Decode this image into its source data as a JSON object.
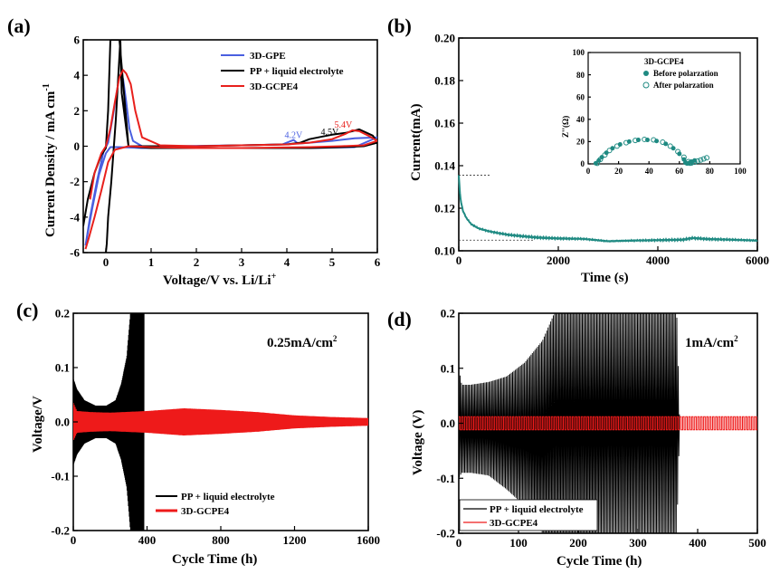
{
  "chart_data": [
    {
      "panel": "(a)",
      "type": "line",
      "xlabel": "Voltage/V vs. Li/Li",
      "xlabel_sup": "+",
      "ylabel": "Current Density / mA cm",
      "ylabel_sup": "-1",
      "xlim": [
        -0.5,
        6
      ],
      "ylim": [
        -6,
        6
      ],
      "xticks": [
        0,
        1,
        2,
        3,
        4,
        5,
        6
      ],
      "yticks": [
        -6,
        -4,
        -2,
        0,
        2,
        4,
        6
      ],
      "legend_position": "top-right",
      "series": [
        {
          "name": "3D-GPE",
          "color": "#4a5fe0",
          "x": [
            -0.45,
            -0.35,
            -0.2,
            -0.05,
            0.05,
            0.15,
            0.25,
            0.3,
            0.38,
            0.45,
            0.52,
            0.6,
            0.8,
            1.5,
            3,
            3.9,
            4.05,
            4.15,
            4.25,
            4.5,
            5,
            5.5,
            6,
            5.5,
            4.5,
            3,
            1.5,
            0.8,
            0.3,
            0.1,
            0,
            -0.15,
            -0.3,
            -0.45
          ],
          "y": [
            -5.6,
            -4.0,
            -2.0,
            -0.3,
            0.2,
            1.6,
            3.2,
            4.0,
            3.8,
            2.5,
            1.0,
            0.3,
            0.0,
            0.0,
            0.05,
            0.1,
            0.25,
            0.35,
            0.15,
            0.2,
            0.3,
            0.45,
            0.5,
            -0.05,
            -0.1,
            -0.1,
            -0.1,
            -0.1,
            -0.05,
            -0.05,
            -0.4,
            -1.6,
            -3.5,
            -5.6
          ]
        },
        {
          "name": "PP + liquid electrolyte",
          "color": "#000000",
          "x": [
            -0.5,
            -0.4,
            -0.25,
            -0.1,
            0.0,
            0.05,
            0.1,
            0.2,
            0.3,
            0.5,
            1.0,
            2.0,
            3.0,
            4.0,
            4.3,
            4.5,
            4.8,
            5.0,
            5.3,
            5.6,
            5.9,
            6.0,
            5.7,
            5.2,
            4.5,
            3.0,
            2.0,
            1.0,
            0.5,
            0.35,
            0.32,
            0.22,
            0.12,
            0.05,
            0.02,
            0.0
          ],
          "y": [
            -4.5,
            -3.0,
            -1.5,
            -0.5,
            -0.1,
            2.0,
            6.0,
            6.0,
            6.0,
            0.0,
            0.0,
            0.0,
            0.05,
            0.1,
            0.2,
            0.4,
            0.55,
            0.65,
            0.75,
            0.95,
            0.6,
            0.2,
            0.0,
            -0.05,
            -0.1,
            -0.1,
            -0.1,
            -0.1,
            0.0,
            3.0,
            6.0,
            1.5,
            -2.0,
            -4.0,
            -5.5,
            -6.0
          ]
        },
        {
          "name": "3D-GCPE4",
          "color": "#e8201c",
          "x": [
            -0.35,
            -0.25,
            -0.1,
            0.0,
            0.1,
            0.2,
            0.3,
            0.38,
            0.45,
            0.55,
            0.65,
            0.8,
            1.2,
            2,
            3,
            4,
            4.5,
            5.0,
            5.3,
            5.45,
            5.6,
            5.8,
            6.0,
            5.7,
            5.2,
            4.5,
            3,
            2,
            1,
            0.5,
            0.2,
            0.05,
            -0.1,
            -0.25,
            -0.38,
            -0.45
          ],
          "y": [
            -3.0,
            -1.5,
            -0.4,
            0.0,
            1.0,
            2.5,
            3.9,
            4.3,
            4.1,
            3.5,
            2.0,
            0.5,
            0.05,
            0.0,
            0.05,
            0.1,
            0.2,
            0.4,
            0.7,
            0.9,
            0.85,
            0.6,
            0.3,
            0.05,
            0.0,
            -0.05,
            -0.1,
            -0.1,
            -0.05,
            0.0,
            -0.2,
            -0.9,
            -2.5,
            -4.0,
            -5.2,
            -5.8
          ]
        }
      ],
      "annotations": [
        {
          "text": "4.2V",
          "x": 3.95,
          "y": 0.45,
          "color": "#4a5fe0"
        },
        {
          "text": "4.5V",
          "x": 4.75,
          "y": 0.65,
          "color": "#000000"
        },
        {
          "text": "5.4V",
          "x": 5.05,
          "y": 1.05,
          "color": "#e8201c"
        }
      ]
    },
    {
      "panel": "(b)",
      "type": "line",
      "xlabel": "Time (s)",
      "ylabel": "Current(mA)",
      "xlim": [
        0,
        6000
      ],
      "ylim": [
        0.1,
        0.2
      ],
      "xticks": [
        0,
        2000,
        4000,
        6000
      ],
      "yticks": [
        0.1,
        0.12,
        0.14,
        0.16,
        0.18,
        0.2
      ],
      "ytick_labels": [
        "0.10",
        "0.12",
        "0.14",
        "0.16",
        "0.18",
        "0.20"
      ],
      "series": [
        {
          "name": "current",
          "color": "#1f8a82",
          "x": [
            0,
            30,
            80,
            150,
            250,
            400,
            600,
            800,
            1000,
            1300,
            1600,
            2000,
            2500,
            3000,
            3500,
            4000,
            4500,
            4700,
            5000,
            5500,
            6000
          ],
          "y": [
            0.1355,
            0.125,
            0.119,
            0.1155,
            0.1125,
            0.1105,
            0.1092,
            0.1083,
            0.1075,
            0.1068,
            0.1062,
            0.1058,
            0.1056,
            0.1045,
            0.1048,
            0.105,
            0.1052,
            0.106,
            0.1055,
            0.1052,
            0.1048
          ]
        }
      ],
      "reference_lines": [
        {
          "y": 0.1355,
          "x_from": 0,
          "x_to": 650
        },
        {
          "y": 0.105,
          "x_from": 0,
          "x_to": 1500
        }
      ],
      "inset": {
        "title": "3D-GCPE4",
        "ylabel": "Z''(Ω)",
        "xlim": [
          0,
          100
        ],
        "ylim": [
          0,
          100
        ],
        "xticks": [
          0,
          20,
          40,
          60,
          80,
          100
        ],
        "yticks": [
          0,
          20,
          40,
          60,
          80,
          100
        ],
        "series": [
          {
            "name": "Before polarzation",
            "marker": "filled-circle",
            "color": "#1f8a82",
            "x": [
              5,
              7,
              9,
              12,
              16,
              21,
              27,
              33,
              39,
              45,
              51,
              56,
              60,
              63,
              64,
              65,
              66,
              67,
              68,
              70
            ],
            "y": [
              0.5,
              3,
              6,
              10,
              14,
              17.5,
              20,
              21.5,
              21.5,
              20.5,
              18,
              14,
              9,
              4,
              1,
              0.3,
              0.5,
              1.2,
              2,
              3
            ]
          },
          {
            "name": "After polarzation",
            "marker": "open-circle",
            "color": "#1f8a82",
            "x": [
              6,
              8,
              11,
              14,
              19,
              25,
              31,
              37,
              43,
              49,
              54,
              59,
              63,
              66,
              67,
              68,
              70,
              72,
              74,
              76,
              78
            ],
            "y": [
              0.5,
              4,
              8,
              12,
              16,
              19,
              21,
              22,
              21.5,
              19.5,
              16,
              11,
              6,
              2,
              0.6,
              0.8,
              1.5,
              2.5,
              3.5,
              4.5,
              5.5
            ]
          }
        ]
      }
    },
    {
      "panel": "(c)",
      "type": "line",
      "xlabel": "Cycle Time (h)",
      "ylabel": "Voltage/V",
      "xlim": [
        0,
        1600
      ],
      "ylim": [
        -0.2,
        0.2
      ],
      "xticks": [
        0,
        400,
        800,
        1200,
        1600
      ],
      "yticks": [
        -0.2,
        -0.1,
        0.0,
        0.1,
        0.2
      ],
      "ytick_labels": [
        "-0.2",
        "-0.1",
        "0.0",
        "0.1",
        "0.2"
      ],
      "annotation": "0.25mA/cm",
      "annotation_sup": "2",
      "legend_position": "bottom-left",
      "series": [
        {
          "name": "PP + liquid electrolyte",
          "color": "#000000",
          "envelope_x": [
            0,
            20,
            60,
            120,
            180,
            230,
            260,
            290,
            310,
            330,
            350,
            370,
            385
          ],
          "envelope_amp": [
            0.08,
            0.06,
            0.04,
            0.03,
            0.03,
            0.04,
            0.07,
            0.12,
            0.2,
            0.2,
            0.2,
            0.2,
            0.2
          ]
        },
        {
          "name": "3D-GCPE4",
          "color": "#ee1a1a",
          "envelope_x": [
            0,
            20,
            100,
            200,
            400,
            600,
            800,
            1000,
            1200,
            1400,
            1600
          ],
          "envelope_amp": [
            0.035,
            0.02,
            0.018,
            0.017,
            0.02,
            0.025,
            0.022,
            0.018,
            0.012,
            0.009,
            0.007
          ]
        }
      ]
    },
    {
      "panel": "(d)",
      "type": "line",
      "xlabel": "Cycle Time (h)",
      "ylabel": "Voltage (V)",
      "xlim": [
        0,
        500
      ],
      "ylim": [
        -0.2,
        0.2
      ],
      "xticks": [
        0,
        100,
        200,
        300,
        400,
        500
      ],
      "yticks": [
        -0.2,
        -0.1,
        0.0,
        0.1,
        0.2
      ],
      "ytick_labels": [
        "-0.2",
        "-0.1",
        "0.0",
        "0.1",
        "0.2"
      ],
      "annotation": "1mA/cm",
      "annotation_sup": "2",
      "legend_position": "bottom-left",
      "series": [
        {
          "name": "PP + liquid electrolyte",
          "color": "#000000",
          "envelope_x": [
            0,
            5,
            20,
            50,
            80,
            110,
            140,
            160,
            200,
            250,
            300,
            340,
            365,
            370
          ],
          "envelope_amp": [
            0.1,
            0.07,
            0.07,
            0.075,
            0.085,
            0.11,
            0.15,
            0.2,
            0.2,
            0.2,
            0.2,
            0.2,
            0.2,
            0.0
          ],
          "negative_amp": [
            0.1,
            0.09,
            0.09,
            0.095,
            0.12,
            0.15,
            0.2,
            0.2,
            0.2,
            0.2,
            0.2,
            0.2,
            0.2,
            0.0
          ]
        },
        {
          "name": "3D-GCPE4",
          "color": "#ee1a1a",
          "envelope_x": [
            0,
            500
          ],
          "envelope_amp": [
            0.012,
            0.012
          ]
        }
      ]
    }
  ]
}
